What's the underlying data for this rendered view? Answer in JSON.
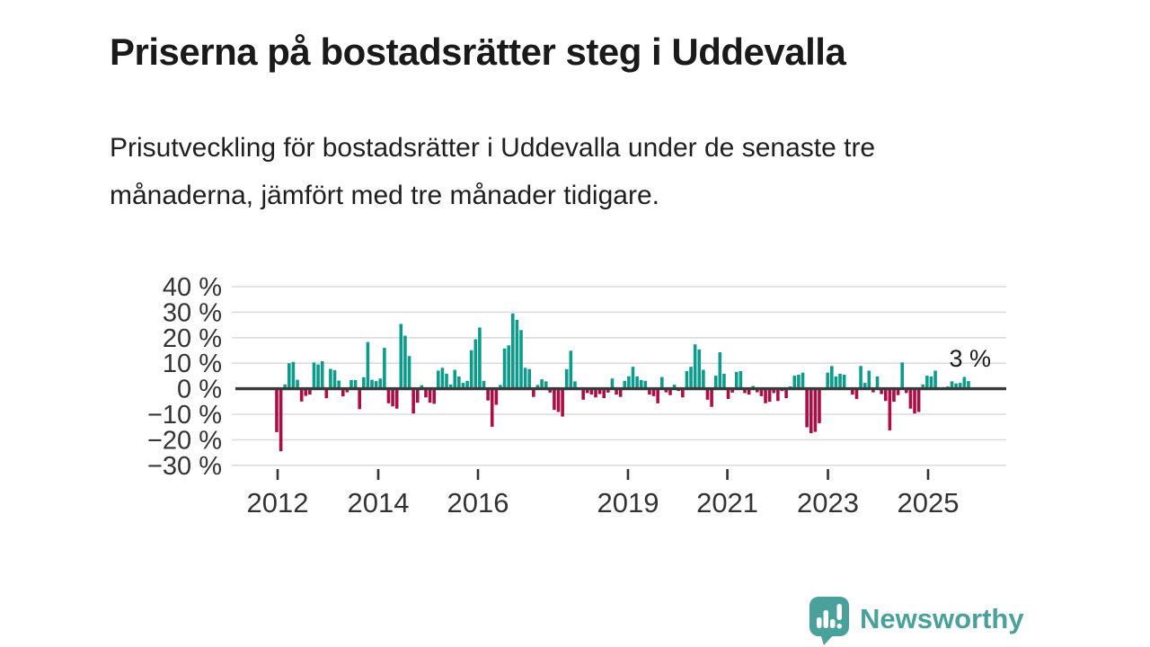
{
  "header": {
    "title": "Priserna på bostadsrätter steg i Uddevalla",
    "subtitle": "Prisutveckling för bostadsrätter i Uddevalla under de senaste tre månaderna, jämfört med tre månader tidigare."
  },
  "chart_data": {
    "type": "bar",
    "unit": "%",
    "title": "Priserna på bostadsrätter steg i Uddevalla",
    "values": [
      -17,
      -24.5,
      1.7,
      10,
      10.5,
      3.5,
      -5,
      -2.8,
      -2.3,
      10.3,
      9.5,
      10.8,
      -3.7,
      7.8,
      7.3,
      3.2,
      -3,
      -1.4,
      3.4,
      3.4,
      -8,
      4.5,
      18.3,
      3.5,
      3,
      4,
      16,
      -5.7,
      -6.9,
      -7.8,
      25.4,
      20.8,
      12.8,
      -9.7,
      -5.5,
      1.4,
      -3.4,
      -5.5,
      -5.9,
      7.1,
      8.2,
      5.9,
      1.7,
      7.4,
      4.8,
      2.3,
      3.1,
      15.1,
      19.4,
      24,
      3.1,
      -4.6,
      -14.9,
      -6.3,
      1.5,
      15.8,
      17,
      29.5,
      27,
      23,
      8.2,
      7.7,
      -3.2,
      1.5,
      3.7,
      2.9,
      -1.5,
      -8.3,
      -9.1,
      -10.9,
      7.7,
      14.9,
      2.9,
      0.5,
      -4.3,
      -1.7,
      -2.3,
      -3.4,
      -2.1,
      -3.7,
      -1.5,
      4,
      -2.3,
      -3.2,
      3.1,
      4.9,
      8.6,
      4.8,
      3.4,
      3.1,
      -2.3,
      -2.9,
      -5.7,
      4.6,
      -1.4,
      -2.5,
      1.6,
      -0.9,
      -3.4,
      6.9,
      8.6,
      17.4,
      15.4,
      7.4,
      -4.3,
      -7.1,
      5.1,
      14.3,
      5.9,
      -4,
      -1.5,
      6.6,
      6.9,
      -1.7,
      -2.3,
      1.1,
      -1.4,
      -2.9,
      -5.7,
      -5.1,
      -1.7,
      -4.8,
      -0.9,
      -3.7,
      0.9,
      5.1,
      5.5,
      6.3,
      -15.1,
      -17.4,
      -16.9,
      -13.5,
      0.3,
      6.3,
      8.9,
      4.8,
      5.9,
      5.5,
      0.3,
      -2.3,
      -4,
      8.9,
      2.3,
      7.1,
      -1.4,
      4.8,
      -2.1,
      -4.8,
      -16.3,
      -5.1,
      -2.5,
      10.3,
      -1.7,
      -7.8,
      -9.7,
      -9.1,
      1.7,
      5.1,
      4.8,
      7.1,
      0.3,
      0.6,
      0.9,
      2.9,
      2.1,
      2.3,
      4.6,
      3
    ],
    "y_tick_labels": [
      "40 %",
      "30 %",
      "20 %",
      "10 %",
      "0 %",
      "−10 %",
      "−20 %",
      "−30 %"
    ],
    "ylim": [
      -33,
      44
    ],
    "x_ticks": [
      {
        "label": "2012",
        "pos": 0.0548
      },
      {
        "label": "2014",
        "pos": 0.1853
      },
      {
        "label": "2016",
        "pos": 0.3147
      },
      {
        "label": "2019",
        "pos": 0.5093
      },
      {
        "label": "2021",
        "pos": 0.6382
      },
      {
        "label": "2023",
        "pos": 0.7687
      },
      {
        "label": "2025",
        "pos": 0.8986
      }
    ],
    "annotation": {
      "text": "3 %",
      "value": 3
    },
    "grid": true,
    "legend": false,
    "colors": {
      "positive": "#0d9b8c",
      "negative": "#ab0e45",
      "grid_line": "#dcdcdc",
      "zero_line": "#3a3a3a",
      "axis_text": "#333333",
      "annotation_text": "#1a1a1a"
    }
  },
  "footer": {
    "brand": "Newsworthy"
  }
}
